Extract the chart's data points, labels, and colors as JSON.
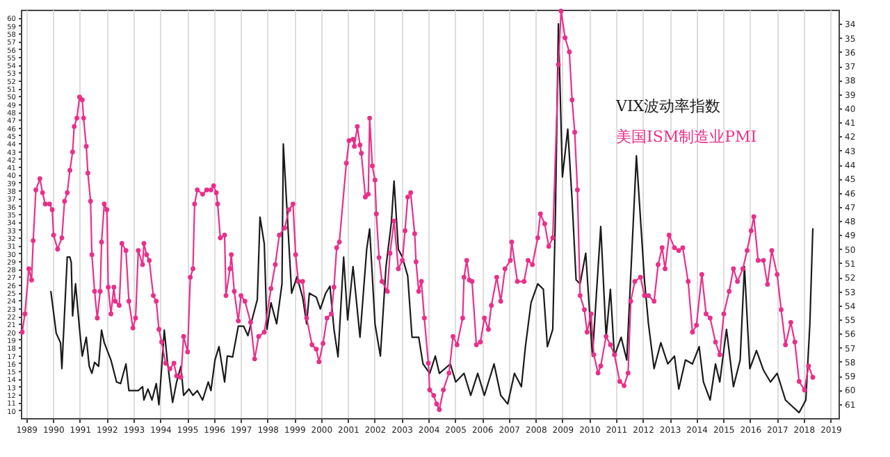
{
  "chart_data": {
    "type": "line",
    "xlim": [
      1988.8,
      2019.3
    ],
    "xticks": [
      1989,
      1990,
      1991,
      1992,
      1993,
      1994,
      1995,
      1996,
      1997,
      1998,
      1999,
      2000,
      2001,
      2002,
      2003,
      2004,
      2005,
      2006,
      2007,
      2008,
      2009,
      2010,
      2011,
      2012,
      2013,
      2014,
      2015,
      2016,
      2017,
      2018,
      2019
    ],
    "ylim": [
      9,
      61
    ],
    "yticks": [
      10,
      11,
      12,
      13,
      14,
      15,
      16,
      17,
      18,
      19,
      20,
      21,
      22,
      23,
      24,
      25,
      26,
      27,
      28,
      29,
      30,
      31,
      32,
      33,
      34,
      35,
      36,
      37,
      38,
      39,
      40,
      41,
      42,
      43,
      44,
      45,
      46,
      47,
      48,
      49,
      50,
      51,
      52,
      53,
      54,
      55,
      56,
      57,
      58,
      59,
      60
    ],
    "y2lim": [
      62,
      33
    ],
    "y2ticks": [
      34,
      35,
      36,
      37,
      38,
      39,
      40,
      41,
      42,
      43,
      44,
      45,
      46,
      47,
      48,
      49,
      50,
      51,
      52,
      53,
      54,
      55,
      56,
      57,
      58,
      59,
      60,
      61
    ],
    "grid": "x",
    "legend": "top right",
    "line_style": "solid",
    "series": [
      {
        "name": "VIX波动率指数",
        "color": "#1a1a1a",
        "marker": "none",
        "x": [
          1989.92,
          1990.12,
          1990.28,
          1990.33,
          1990.53,
          1990.63,
          1990.68,
          1990.73,
          1990.84,
          1990.99,
          1991.09,
          1991.24,
          1991.35,
          1991.45,
          1991.55,
          1991.7,
          1991.81,
          1991.91,
          1992.16,
          1992.37,
          1992.52,
          1992.72,
          1992.83,
          1993.18,
          1993.34,
          1993.39,
          1993.54,
          1993.69,
          1993.85,
          1993.95,
          1994.05,
          1994.15,
          1994.26,
          1994.36,
          1994.46,
          1994.61,
          1994.77,
          1994.87,
          1995.07,
          1995.22,
          1995.38,
          1995.58,
          1995.79,
          1995.89,
          1996.04,
          1996.19,
          1996.4,
          1996.5,
          1996.7,
          1996.91,
          1997.11,
          1997.27,
          1997.42,
          1997.62,
          1997.72,
          1997.88,
          1997.98,
          1998.13,
          1998.34,
          1998.54,
          1998.59,
          1998.9,
          1999.1,
          1999.31,
          1999.46,
          1999.56,
          1999.82,
          1999.97,
          2000.17,
          2000.33,
          2000.48,
          2000.63,
          2000.84,
          2000.99,
          2001.19,
          2001.45,
          2001.7,
          2001.81,
          2002.01,
          2002.21,
          2002.42,
          2002.62,
          2002.72,
          2002.88,
          2003.03,
          2003.23,
          2003.39,
          2003.64,
          2003.8,
          2004.05,
          2004.26,
          2004.41,
          2004.82,
          2005.02,
          2005.33,
          2005.58,
          2005.84,
          2006.09,
          2006.45,
          2006.7,
          2006.96,
          2007.21,
          2007.47,
          2007.62,
          2007.83,
          2008.08,
          2008.29,
          2008.44,
          2008.64,
          2008.74,
          2008.85,
          2009.0,
          2009.2,
          2009.36,
          2009.51,
          2009.66,
          2009.87,
          2010.12,
          2010.43,
          2010.63,
          2010.79,
          2010.94,
          2011.19,
          2011.4,
          2011.76,
          2012.06,
          2012.21,
          2012.42,
          2012.67,
          2012.93,
          2013.18,
          2013.34,
          2013.59,
          2013.85,
          2014.1,
          2014.26,
          2014.51,
          2014.71,
          2014.87,
          2015.12,
          2015.38,
          2015.63,
          2015.79,
          2015.99,
          2016.24,
          2016.5,
          2016.76,
          2017.01,
          2017.32,
          2017.57,
          2017.83,
          2018.08,
          2018.23,
          2018.34
        ],
        "values": [
          25.1,
          19.8,
          18.6,
          15.3,
          29.5,
          29.5,
          28.8,
          22.0,
          26.1,
          20.3,
          16.9,
          19.3,
          15.6,
          14.7,
          16.1,
          15.6,
          20.2,
          18.6,
          16.4,
          13.6,
          13.4,
          15.9,
          12.5,
          12.5,
          13.0,
          11.3,
          12.7,
          11.3,
          13.4,
          10.7,
          15.3,
          20.2,
          16.4,
          13.6,
          11.0,
          13.6,
          15.6,
          11.9,
          12.7,
          11.9,
          12.5,
          11.3,
          13.6,
          12.5,
          16.4,
          18.1,
          13.6,
          16.9,
          16.8,
          20.7,
          20.7,
          19.5,
          21.5,
          24.1,
          34.6,
          31.2,
          20.3,
          23.7,
          21.0,
          26.1,
          43.9,
          24.9,
          27.0,
          24.4,
          21.0,
          24.9,
          24.4,
          22.9,
          24.9,
          25.8,
          20.3,
          16.8,
          29.5,
          21.5,
          28.3,
          19.3,
          30.5,
          33.1,
          21.0,
          16.9,
          28.3,
          33.9,
          39.2,
          30.5,
          29.5,
          27.1,
          19.3,
          19.3,
          15.9,
          14.7,
          16.9,
          14.7,
          15.9,
          13.6,
          14.7,
          11.9,
          14.7,
          11.9,
          15.9,
          11.9,
          10.8,
          14.7,
          13.0,
          18.1,
          23.7,
          26.1,
          25.4,
          18.1,
          20.3,
          35.1,
          59.2,
          39.7,
          45.8,
          36.8,
          26.6,
          26.1,
          30.0,
          16.9,
          33.4,
          19.3,
          25.4,
          16.9,
          19.3,
          16.4,
          42.4,
          26.6,
          21.0,
          15.3,
          18.6,
          15.9,
          16.9,
          12.7,
          16.4,
          15.9,
          18.1,
          13.6,
          11.3,
          15.9,
          13.6,
          20.3,
          13.0,
          16.4,
          28.3,
          15.3,
          17.6,
          15.1,
          13.6,
          14.7,
          11.3,
          10.5,
          9.7,
          11.3,
          21.0,
          33.1
        ]
      },
      {
        "name": "美国ISM制造业PMI",
        "color": "#e8308a",
        "marker": "circle",
        "axis": "y2",
        "x": [
          1988.85,
          1988.95,
          1989.1,
          1989.2,
          1989.26,
          1989.36,
          1989.51,
          1989.61,
          1989.71,
          1989.87,
          1989.97,
          1990.02,
          1990.17,
          1990.33,
          1990.43,
          1990.53,
          1990.63,
          1990.73,
          1990.79,
          1990.89,
          1990.99,
          1991.09,
          1991.14,
          1991.24,
          1991.3,
          1991.4,
          1991.45,
          1991.55,
          1991.65,
          1991.76,
          1991.81,
          1991.91,
          1992.01,
          1992.06,
          1992.16,
          1992.27,
          1992.32,
          1992.47,
          1992.57,
          1992.72,
          1992.83,
          1992.98,
          1993.08,
          1993.18,
          1993.34,
          1993.39,
          1993.49,
          1993.59,
          1993.74,
          1993.85,
          1993.95,
          1994.05,
          1994.2,
          1994.36,
          1994.51,
          1994.61,
          1994.77,
          1994.87,
          1995.02,
          1995.12,
          1995.22,
          1995.28,
          1995.38,
          1995.58,
          1995.73,
          1995.89,
          1995.99,
          1996.09,
          1996.14,
          1996.24,
          1996.4,
          1996.45,
          1996.6,
          1996.65,
          1996.76,
          1996.91,
          1997.01,
          1997.16,
          1997.37,
          1997.52,
          1997.67,
          1997.88,
          1998.13,
          1998.29,
          1998.44,
          1998.64,
          1998.8,
          1998.95,
          1999.05,
          1999.15,
          1999.31,
          1999.46,
          1999.66,
          1999.82,
          1999.92,
          2000.07,
          2000.22,
          2000.38,
          2000.48,
          2000.58,
          2000.68,
          2000.94,
          2001.04,
          2001.19,
          2001.24,
          2001.35,
          2001.45,
          2001.5,
          2001.65,
          2001.76,
          2001.81,
          2001.91,
          2002.01,
          2002.06,
          2002.16,
          2002.27,
          2002.47,
          2002.57,
          2002.72,
          2002.88,
          2003.03,
          2003.13,
          2003.23,
          2003.34,
          2003.49,
          2003.54,
          2003.64,
          2003.74,
          2003.85,
          2004.0,
          2004.05,
          2004.2,
          2004.31,
          2004.41,
          2004.56,
          2004.77,
          2004.92,
          2005.07,
          2005.28,
          2005.33,
          2005.43,
          2005.53,
          2005.63,
          2005.79,
          2005.94,
          2006.09,
          2006.24,
          2006.35,
          2006.55,
          2006.7,
          2006.86,
          2007.06,
          2007.11,
          2007.32,
          2007.57,
          2007.72,
          2007.88,
          2008.08,
          2008.18,
          2008.34,
          2008.49,
          2008.64,
          2008.85,
          2008.95,
          2009.1,
          2009.26,
          2009.36,
          2009.46,
          2009.56,
          2009.66,
          2009.82,
          2009.92,
          2010.07,
          2010.17,
          2010.33,
          2010.43,
          2010.63,
          2010.79,
          2010.94,
          2011.14,
          2011.3,
          2011.45,
          2011.55,
          2011.7,
          2011.91,
          2012.06,
          2012.21,
          2012.42,
          2012.57,
          2012.72,
          2012.83,
          2012.98,
          2013.18,
          2013.34,
          2013.49,
          2013.69,
          2013.85,
          2014.0,
          2014.2,
          2014.36,
          2014.51,
          2014.71,
          2014.87,
          2015.02,
          2015.22,
          2015.38,
          2015.53,
          2015.73,
          2015.89,
          2016.04,
          2016.14,
          2016.3,
          2016.5,
          2016.65,
          2016.81,
          2017.01,
          2017.16,
          2017.32,
          2017.52,
          2017.67,
          2017.83,
          2018.03,
          2018.18,
          2018.34
        ],
        "values": [
          55.9,
          54.6,
          51.4,
          52.2,
          49.4,
          45.8,
          45.0,
          46.0,
          46.8,
          46.8,
          47.2,
          49.0,
          50.0,
          49.2,
          46.6,
          46.0,
          44.4,
          43.1,
          41.3,
          40.7,
          39.2,
          39.4,
          40.7,
          42.7,
          44.6,
          46.6,
          50.4,
          53.0,
          54.9,
          53.0,
          49.5,
          46.8,
          47.2,
          52.7,
          54.6,
          52.7,
          53.7,
          54.0,
          49.6,
          50.1,
          53.7,
          55.6,
          54.9,
          50.1,
          51.1,
          49.6,
          50.4,
          50.8,
          53.3,
          53.7,
          55.7,
          56.6,
          58.1,
          58.5,
          58.1,
          59.0,
          59.1,
          56.2,
          57.3,
          52.0,
          51.4,
          46.8,
          45.8,
          46.1,
          45.8,
          45.8,
          45.5,
          46.0,
          46.8,
          49.2,
          49.0,
          53.3,
          51.4,
          50.4,
          53.0,
          55.1,
          53.3,
          53.7,
          55.2,
          57.8,
          56.2,
          55.9,
          52.8,
          51.1,
          49.0,
          48.5,
          47.2,
          46.8,
          50.4,
          52.3,
          52.3,
          54.9,
          56.8,
          57.1,
          58.0,
          56.7,
          54.9,
          54.6,
          52.7,
          49.9,
          49.5,
          43.9,
          42.3,
          42.2,
          42.7,
          41.3,
          42.6,
          43.2,
          46.3,
          46.1,
          40.7,
          44.1,
          45.1,
          47.5,
          50.6,
          52.3,
          53.0,
          50.3,
          48.0,
          51.4,
          50.8,
          48.7,
          46.3,
          46.0,
          48.9,
          50.9,
          53.0,
          52.3,
          54.9,
          58.1,
          60.0,
          60.4,
          61.0,
          61.4,
          60.0,
          58.8,
          56.2,
          56.8,
          54.9,
          52.0,
          50.8,
          52.2,
          52.3,
          56.8,
          56.6,
          54.9,
          55.7,
          54.0,
          52.0,
          53.7,
          51.4,
          50.8,
          49.5,
          52.3,
          52.3,
          50.8,
          51.1,
          49.2,
          47.5,
          48.2,
          49.8,
          49.2,
          36.9,
          33.1,
          35.0,
          36.0,
          39.4,
          41.7,
          45.8,
          53.3,
          54.3,
          55.9,
          54.6,
          57.5,
          58.8,
          58.3,
          56.2,
          56.8,
          57.5,
          59.4,
          59.7,
          58.8,
          53.7,
          52.3,
          52.0,
          53.3,
          53.3,
          53.7,
          51.1,
          49.9,
          51.4,
          49.0,
          49.9,
          50.1,
          49.9,
          52.3,
          55.9,
          55.4,
          51.8,
          54.6,
          54.9,
          56.6,
          57.5,
          54.6,
          53.0,
          51.4,
          52.3,
          51.4,
          50.1,
          48.7,
          47.7,
          50.8,
          50.8,
          52.5,
          50.1,
          51.8,
          54.3,
          56.8,
          55.2,
          56.6,
          59.4,
          60.0,
          58.3,
          59.1
        ]
      }
    ]
  }
}
